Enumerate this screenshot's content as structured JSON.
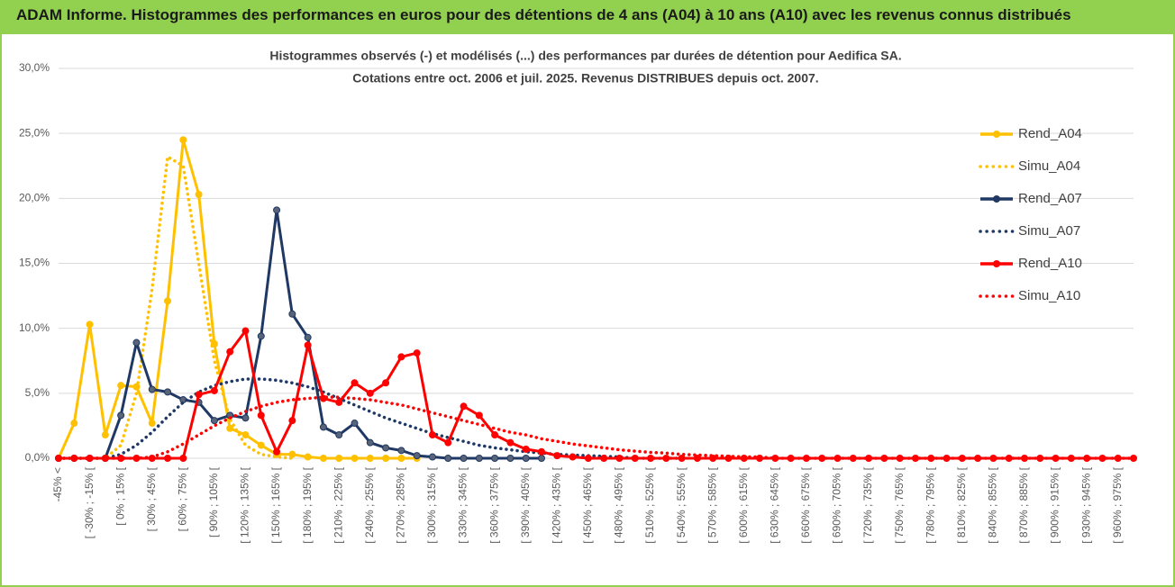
{
  "header": {
    "title": "ADAM Informe. Histogrammes des performances en euros pour des détentions de 4 ans (A04) à 10 ans (A10) avec les revenus connus distribués"
  },
  "chart_data": {
    "type": "line",
    "title": "Histogrammes observés (-) et modélisés (...) des performances par durées de détention pour Aedifica SA.",
    "subtitle": "Cotations entre oct. 2006 et juil. 2025. Revenus DISTRIBUES depuis oct. 2007.",
    "categories": [
      "-45% <",
      null,
      "[ -30% ; -15% [",
      null,
      "[ 0% ; 15% [",
      null,
      "[ 30% ; 45% [",
      null,
      "[ 60% ; 75% [",
      null,
      "[ 90% ; 105% [",
      null,
      "[ 120% ; 135% [",
      null,
      "[ 150% ; 165% [",
      null,
      "[ 180% ; 195% [",
      null,
      "[ 210% ; 225% [",
      null,
      "[ 240% ; 255% [",
      null,
      "[ 270% ; 285% [",
      null,
      "[ 300% ; 315% [",
      null,
      "[ 330% ; 345% [",
      null,
      "[ 360% ; 375% [",
      null,
      "[ 390% ; 405% [",
      null,
      "[ 420% ; 435% [",
      null,
      "[ 450% ; 465% [",
      null,
      "[ 480% ; 495% [",
      null,
      "[ 510% ; 525% [",
      null,
      "[ 540% ; 555% [",
      null,
      "[ 570% ; 585% [",
      null,
      "[ 600% ; 615% [",
      null,
      "[ 630% ; 645% [",
      null,
      "[ 660% ; 675% [",
      null,
      "[ 690% ; 705% [",
      null,
      "[ 720% ; 735% [",
      null,
      "[ 750% ; 765% [",
      null,
      "[ 780% ; 795% [",
      null,
      "[ 810% ; 825% [",
      null,
      "[ 840% ; 855% [",
      null,
      "[ 870% ; 885% [",
      null,
      "[ 900% ; 915% [",
      null,
      "[ 930% ; 945% [",
      null,
      "[ 960% ; 975% [",
      null
    ],
    "ylim": [
      0,
      30
    ],
    "yticks": [
      {
        "value": 0,
        "label": "0,0%"
      },
      {
        "value": 5,
        "label": "5,0%"
      },
      {
        "value": 10,
        "label": "10,0%"
      },
      {
        "value": 15,
        "label": "15,0%"
      },
      {
        "value": 20,
        "label": "20,0%"
      },
      {
        "value": 25,
        "label": "25,0%"
      },
      {
        "value": 30,
        "label": "30,0%"
      }
    ],
    "grid": true,
    "legend": "right",
    "series": [
      {
        "name": "Rend_A04",
        "color": "#ffc000",
        "line_style": "solid",
        "markers": true,
        "values": [
          0,
          2.7,
          10.3,
          1.8,
          5.6,
          5.5,
          2.7,
          12.1,
          24.5,
          20.3,
          8.8,
          2.3,
          1.8,
          1.0,
          0.3,
          0.3,
          0.1,
          0,
          0,
          0,
          0,
          0,
          0,
          0,
          null,
          null,
          null,
          null,
          null,
          null,
          null,
          null,
          null,
          null,
          null,
          null,
          null,
          null,
          null,
          null,
          null,
          null,
          null,
          null,
          null,
          null,
          null,
          null,
          null,
          null,
          null,
          null,
          null,
          null,
          null,
          null,
          null,
          null,
          null,
          null,
          null,
          null,
          null,
          null,
          null,
          null,
          null,
          null,
          null,
          null
        ]
      },
      {
        "name": "Simu_A04",
        "color": "#ffc000",
        "line_style": "dotted",
        "markers": false,
        "values": [
          0,
          0,
          0,
          0,
          1,
          5,
          13,
          23.2,
          22.5,
          15,
          7.5,
          3,
          1,
          0.3,
          0.1,
          0,
          null,
          null,
          null,
          null,
          null,
          null,
          null,
          null,
          null,
          null,
          null,
          null,
          null,
          null,
          null,
          null,
          null,
          null,
          null,
          null,
          null,
          null,
          null,
          null,
          null,
          null,
          null,
          null,
          null,
          null,
          null,
          null,
          null,
          null,
          null,
          null,
          null,
          null,
          null,
          null,
          null,
          null,
          null,
          null,
          null,
          null,
          null,
          null,
          null,
          null,
          null,
          null,
          null,
          null
        ]
      },
      {
        "name": "Rend_A07",
        "color": "#1f3864",
        "line_style": "solid",
        "markers": true,
        "values": [
          0,
          0,
          0,
          0,
          3.3,
          8.9,
          5.3,
          5.1,
          4.5,
          4.3,
          2.9,
          3.3,
          3.1,
          9.4,
          19.1,
          11.1,
          9.3,
          2.4,
          1.8,
          2.7,
          1.2,
          0.8,
          0.6,
          0.2,
          0.1,
          0,
          0,
          0,
          0,
          0,
          0,
          0,
          null,
          null,
          null,
          null,
          null,
          null,
          null,
          null,
          null,
          null,
          null,
          null,
          null,
          null,
          null,
          null,
          null,
          null,
          null,
          null,
          null,
          null,
          null,
          null,
          null,
          null,
          null,
          null,
          null,
          null,
          null,
          null,
          null,
          null,
          null,
          null,
          null,
          null
        ]
      },
      {
        "name": "Simu_A07",
        "color": "#1f3864",
        "line_style": "dotted",
        "markers": false,
        "values": [
          0,
          0,
          0,
          0,
          0.3,
          1,
          2,
          3.2,
          4.3,
          5.1,
          5.6,
          5.9,
          6.1,
          6.1,
          6.0,
          5.8,
          5.5,
          5.1,
          4.6,
          4.1,
          3.6,
          3.1,
          2.7,
          2.3,
          1.9,
          1.6,
          1.3,
          1.0,
          0.8,
          0.65,
          0.5,
          0.4,
          0.3,
          0.25,
          0.2,
          0.15,
          0.1,
          0,
          0,
          0,
          0,
          null,
          null,
          null,
          null,
          null,
          null,
          null,
          null,
          null,
          null,
          null,
          null,
          null,
          null,
          null,
          null,
          null,
          null,
          null,
          null,
          null,
          null,
          null,
          null,
          null,
          null,
          null,
          null,
          null
        ]
      },
      {
        "name": "Rend_A10",
        "color": "#ff0000",
        "line_style": "solid",
        "markers": true,
        "values": [
          0,
          0,
          0,
          0,
          0,
          0,
          0,
          0,
          0,
          4.9,
          5.2,
          8.2,
          9.8,
          3.3,
          0.5,
          2.9,
          8.7,
          4.6,
          4.3,
          5.8,
          5.0,
          5.8,
          7.8,
          8.1,
          1.8,
          1.2,
          4.0,
          3.3,
          1.8,
          1.2,
          0.7,
          0.5,
          0.2,
          0.1,
          0,
          0,
          0,
          0,
          0,
          0,
          0,
          0,
          0,
          0,
          0,
          0,
          0,
          0,
          0,
          0,
          0,
          0,
          0,
          0,
          0,
          0,
          0,
          0,
          0,
          0,
          0,
          0,
          0,
          0,
          0,
          0,
          0,
          0,
          0,
          0
        ]
      },
      {
        "name": "Simu_A10",
        "color": "#ff0000",
        "line_style": "dotted",
        "markers": false,
        "values": [
          0,
          0,
          0,
          0,
          0,
          0,
          0.1,
          0.5,
          1.1,
          1.8,
          2.5,
          3.1,
          3.6,
          4.0,
          4.3,
          4.5,
          4.6,
          4.7,
          4.7,
          4.6,
          4.5,
          4.3,
          4.1,
          3.8,
          3.5,
          3.2,
          2.9,
          2.6,
          2.3,
          2.0,
          1.8,
          1.5,
          1.3,
          1.1,
          0.95,
          0.8,
          0.65,
          0.55,
          0.45,
          0.4,
          0.3,
          0.25,
          0.2,
          0.15,
          0.1,
          0.1,
          0,
          0,
          0,
          0,
          0,
          0,
          0,
          0,
          0,
          0,
          0,
          0,
          0,
          0,
          0,
          0,
          0,
          0,
          0,
          0,
          0,
          0,
          0,
          0
        ]
      }
    ]
  }
}
